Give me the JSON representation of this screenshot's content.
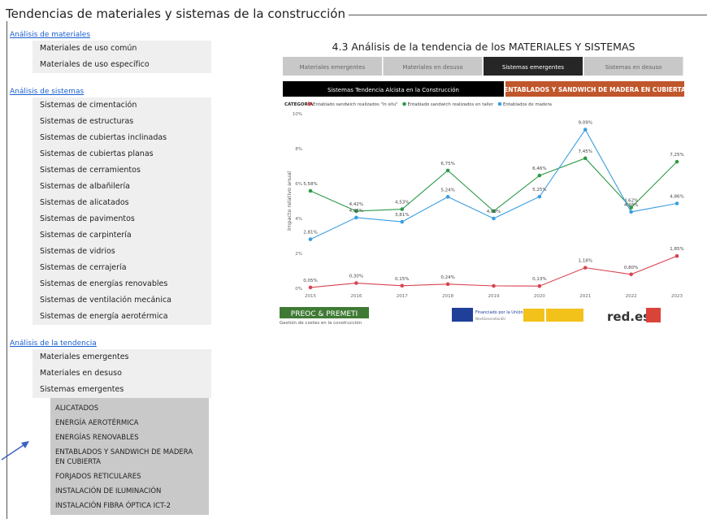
{
  "page_title": "Tendencias de materiales y sistemas de la construcción",
  "menu": {
    "sections": [
      {
        "title": "Análisis de materiales",
        "items": [
          "Materiales de uso común",
          "Materiales de uso específico"
        ]
      },
      {
        "title": "Análisis de sistemas",
        "items": [
          "Sistemas de cimentación",
          "Sistemas de estructuras",
          "Sistemas de cubiertas inclinadas",
          "Sistemas de cubiertas planas",
          "Sistemas de cerramientos",
          "Sistemas de albañilería",
          "Sistemas de alicatados",
          "Sistemas de pavimentos",
          "Sistemas de carpintería",
          "Sistemas de vidrios",
          "Sistemas de cerrajería",
          "Sistemas de energías renovables",
          "Sistemas de ventilación mecánica",
          "Sistemas de energía aerotérmica"
        ]
      },
      {
        "title": "Análisis de la tendencia",
        "items": [
          "Materiales emergentes",
          "Materiales en desuso",
          "Sistemas emergentes"
        ],
        "submenu": [
          "ALICATADOS",
          "ENERGÍA AEROTÉRMICA",
          "ENERGÍAS RENOVABLES",
          "ENTABLADOS Y SANDWICH DE MADERA EN CUBIERTA",
          "FORJADOS RETICULARES",
          "INSTALACIÓN DE ILUMINACIÓN",
          "INSTALACIÓN FIBRA ÓPTICA ICT-2"
        ]
      }
    ]
  },
  "dashboard": {
    "title": "4.3 Análisis de la tendencia de los MATERIALES Y SISTEMAS",
    "tabs": [
      "Materiales emergentes",
      "Materiales en desuso",
      "Sistemas emergentes",
      "Sistemas en desuso"
    ],
    "banner_left": "Sistemas Tendencia Alcista en la Construcción",
    "banner_right": "ENTABLADOS Y SANDWICH DE MADERA EN CUBIERTA",
    "footer": {
      "preoc": "PREOC & PREMETI",
      "preoc_sub": "Gestión de costes en la construcción",
      "eu": "Financiado por la Unión Europea",
      "eu_sub": "NextGenerationEU",
      "redes": "red.es"
    }
  },
  "chart_data": {
    "type": "line",
    "legend_title": "CATEGORÍA",
    "y_label": "Impacto relativo anual",
    "categories": [
      "2015",
      "2016",
      "2017",
      "2018",
      "2019",
      "2020",
      "2021",
      "2022",
      "2023"
    ],
    "ylim": [
      0,
      10
    ],
    "yticks": [
      {
        "value": 0,
        "label": "0%"
      },
      {
        "value": 2,
        "label": "2%"
      },
      {
        "value": 4,
        "label": "4%"
      },
      {
        "value": 6,
        "label": "6%"
      },
      {
        "value": 8,
        "label": "8%"
      },
      {
        "value": 10,
        "label": "10%"
      }
    ],
    "grid": false,
    "series": [
      {
        "name": "Entablado sandwich realizados \"in situ\"",
        "color": "#d9434f",
        "values": [
          0.05,
          0.3,
          0.15,
          0.24,
          0.14,
          0.13,
          1.18,
          0.8,
          1.85
        ],
        "value_labels": [
          "0,05%",
          "0,30%",
          "0,15%",
          "0,24%",
          null,
          "0,13%",
          "1,18%",
          "0,80%",
          "1,85%"
        ]
      },
      {
        "name": "Entablado sandwich realizados en taller",
        "color": "#2e9a48",
        "values": [
          5.58,
          4.42,
          4.53,
          6.75,
          4.42,
          6.46,
          7.45,
          4.62,
          7.25
        ],
        "value_labels": [
          "5,58%",
          "4,42%",
          "4,53%",
          "6,75%",
          null,
          "6,46%",
          "7,45%",
          "4,62%",
          "7,25%"
        ]
      },
      {
        "name": "Entablados de madera",
        "color": "#3a9ee0",
        "values": [
          2.81,
          4.05,
          3.81,
          5.24,
          4.0,
          5.25,
          9.09,
          4.38,
          4.86
        ],
        "value_labels": [
          "2,81%",
          "4,05%",
          "3,81%",
          "5,24%",
          "4,00%",
          "5,25%",
          "9,09%",
          "4,38%",
          "4,86%"
        ]
      }
    ]
  }
}
